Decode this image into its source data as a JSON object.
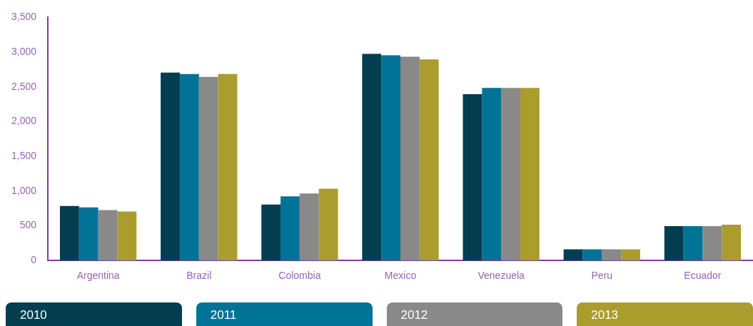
{
  "chart_data": {
    "type": "bar",
    "categories": [
      "Argentina",
      "Brazil",
      "Colombia",
      "Mexico",
      "Venezuela",
      "Peru",
      "Ecuador"
    ],
    "series": [
      {
        "name": "2010",
        "color": "#023d50",
        "values": [
          785,
          2705,
          805,
          2975,
          2395,
          160,
          495
        ]
      },
      {
        "name": "2011",
        "color": "#007396",
        "values": [
          765,
          2685,
          925,
          2955,
          2485,
          160,
          495
        ]
      },
      {
        "name": "2012",
        "color": "#898989",
        "values": [
          725,
          2645,
          965,
          2935,
          2485,
          160,
          495
        ]
      },
      {
        "name": "2013",
        "color": "#ab9c2e",
        "values": [
          705,
          2685,
          1035,
          2895,
          2485,
          160,
          515
        ]
      }
    ],
    "ylim": [
      0,
      3500
    ],
    "yticks": [
      {
        "value": 0,
        "label": "0"
      },
      {
        "value": 500,
        "label": "500"
      },
      {
        "value": 1000,
        "label": "1,000"
      },
      {
        "value": 1500,
        "label": "1,500"
      },
      {
        "value": 2000,
        "label": "2,000"
      },
      {
        "value": 2500,
        "label": "2,500"
      },
      {
        "value": 3000,
        "label": "3,000"
      },
      {
        "value": 3500,
        "label": "3,500"
      }
    ],
    "grid": false,
    "legend": "bottom"
  }
}
